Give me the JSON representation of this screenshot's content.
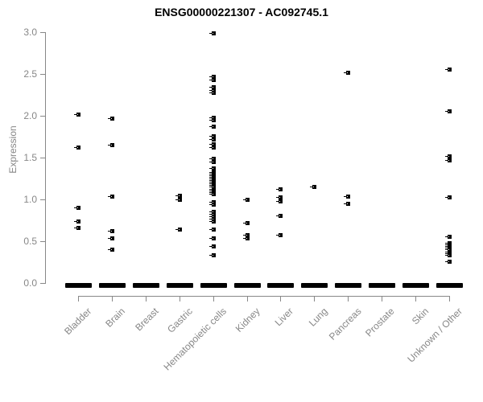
{
  "title": "ENSG00000221307 - AC092745.1",
  "colors": {
    "background": "#ffffff",
    "point": "#000000",
    "axis_line": "#888888",
    "axis_text": "#878787",
    "title_text": "#000000"
  },
  "chart_data": {
    "type": "scatter",
    "title": "ENSG00000221307 - AC092745.1",
    "xlabel": "",
    "ylabel": "Expression",
    "ylim": [
      0,
      3.0
    ],
    "yticks": [
      0.0,
      0.5,
      1.0,
      1.5,
      2.0,
      2.5,
      3.0
    ],
    "ytick_labels": [
      "0.0",
      "0.5",
      "1.0",
      "1.5",
      "2.0",
      "2.5",
      "3.0"
    ],
    "grid": false,
    "legend": false,
    "marker": "small-black-square",
    "categories": [
      "Bladder",
      "Brain",
      "Breast",
      "Gastric",
      "Hematopoietic cells",
      "Kidney",
      "Liver",
      "Lung",
      "Pancreas",
      "Prostate",
      "Skin",
      "Unknown / Other"
    ],
    "series": [
      {
        "category": "Bladder",
        "zero_cluster": true,
        "points": [
          2.01,
          1.62,
          0.89,
          0.73,
          0.65
        ]
      },
      {
        "category": "Brain",
        "zero_cluster": true,
        "points": [
          1.96,
          1.64,
          1.03,
          0.62,
          0.53,
          0.39
        ]
      },
      {
        "category": "Breast",
        "zero_cluster": true,
        "points": []
      },
      {
        "category": "Gastric",
        "zero_cluster": true,
        "points": [
          1.04,
          0.99,
          0.63
        ]
      },
      {
        "category": "Hematopoietic cells",
        "zero_cluster": true,
        "points": [
          2.98,
          2.46,
          2.42,
          2.34,
          2.3,
          2.27,
          1.97,
          1.94,
          1.87,
          1.75,
          1.71,
          1.65,
          1.62,
          1.48,
          1.44,
          1.37,
          1.32,
          1.3,
          1.28,
          1.26,
          1.24,
          1.22,
          1.2,
          1.18,
          1.16,
          1.14,
          1.12,
          1.1,
          1.08,
          1.06,
          0.96,
          0.93,
          0.85,
          0.82,
          0.79,
          0.76,
          0.73,
          0.63,
          0.53,
          0.43,
          0.33
        ]
      },
      {
        "category": "Kidney",
        "zero_cluster": true,
        "points": [
          0.99,
          0.71,
          0.57,
          0.53
        ]
      },
      {
        "category": "Liver",
        "zero_cluster": true,
        "points": [
          1.12,
          1.02,
          0.97,
          0.8,
          0.57
        ]
      },
      {
        "category": "Lung",
        "zero_cluster": true,
        "points": [
          1.14
        ]
      },
      {
        "category": "Pancreas",
        "zero_cluster": true,
        "points": [
          2.51,
          1.03,
          0.94
        ]
      },
      {
        "category": "Prostate",
        "zero_cluster": true,
        "points": []
      },
      {
        "category": "Skin",
        "zero_cluster": true,
        "points": []
      },
      {
        "category": "Unknown / Other",
        "zero_cluster": true,
        "points": [
          2.55,
          2.05,
          1.51,
          1.46,
          1.02,
          0.55,
          0.47,
          0.45,
          0.43,
          0.41,
          0.39,
          0.37,
          0.35,
          0.33,
          0.25
        ]
      }
    ]
  }
}
